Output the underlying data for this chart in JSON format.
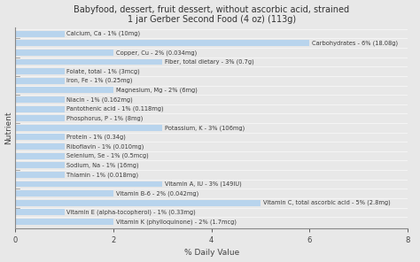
{
  "title": "Babyfood, dessert, fruit dessert, without ascorbic acid, strained\n1 jar Gerber Second Food (4 oz) (113g)",
  "xlabel": "% Daily Value",
  "ylabel": "Nutrient",
  "plot_bg_color": "#dce9f5",
  "fig_bg_color": "#e8e8e8",
  "bar_color": "#b8d4ed",
  "xlim": [
    0,
    8
  ],
  "xticks": [
    0,
    2,
    4,
    6,
    8
  ],
  "nutrients": [
    {
      "label": "Calcium, Ca - 1% (10mg)",
      "value": 1
    },
    {
      "label": "Carbohydrates - 6% (18.08g)",
      "value": 6
    },
    {
      "label": "Copper, Cu - 2% (0.034mg)",
      "value": 2
    },
    {
      "label": "Fiber, total dietary - 3% (0.7g)",
      "value": 3
    },
    {
      "label": "Folate, total - 1% (3mcg)",
      "value": 1
    },
    {
      "label": "Iron, Fe - 1% (0.25mg)",
      "value": 1
    },
    {
      "label": "Magnesium, Mg - 2% (6mg)",
      "value": 2
    },
    {
      "label": "Niacin - 1% (0.162mg)",
      "value": 1
    },
    {
      "label": "Pantothenic acid - 1% (0.118mg)",
      "value": 1
    },
    {
      "label": "Phosphorus, P - 1% (8mg)",
      "value": 1
    },
    {
      "label": "Potassium, K - 3% (106mg)",
      "value": 3
    },
    {
      "label": "Protein - 1% (0.34g)",
      "value": 1
    },
    {
      "label": "Riboflavin - 1% (0.010mg)",
      "value": 1
    },
    {
      "label": "Selenium, Se - 1% (0.5mcg)",
      "value": 1
    },
    {
      "label": "Sodium, Na - 1% (16mg)",
      "value": 1
    },
    {
      "label": "Thiamin - 1% (0.018mg)",
      "value": 1
    },
    {
      "label": "Vitamin A, IU - 3% (149IU)",
      "value": 3
    },
    {
      "label": "Vitamin B-6 - 2% (0.042mg)",
      "value": 2
    },
    {
      "label": "Vitamin C, total ascorbic acid - 5% (2.8mg)",
      "value": 5
    },
    {
      "label": "Vitamin E (alpha-tocopherol) - 1% (0.33mg)",
      "value": 1
    },
    {
      "label": "Vitamin K (phylloquinone) - 2% (1.7mcg)",
      "value": 2
    }
  ],
  "label_on_bar_threshold": 1.5,
  "title_fontsize": 7,
  "label_fontsize": 4.8,
  "axis_label_fontsize": 6.5,
  "tick_fontsize": 6
}
